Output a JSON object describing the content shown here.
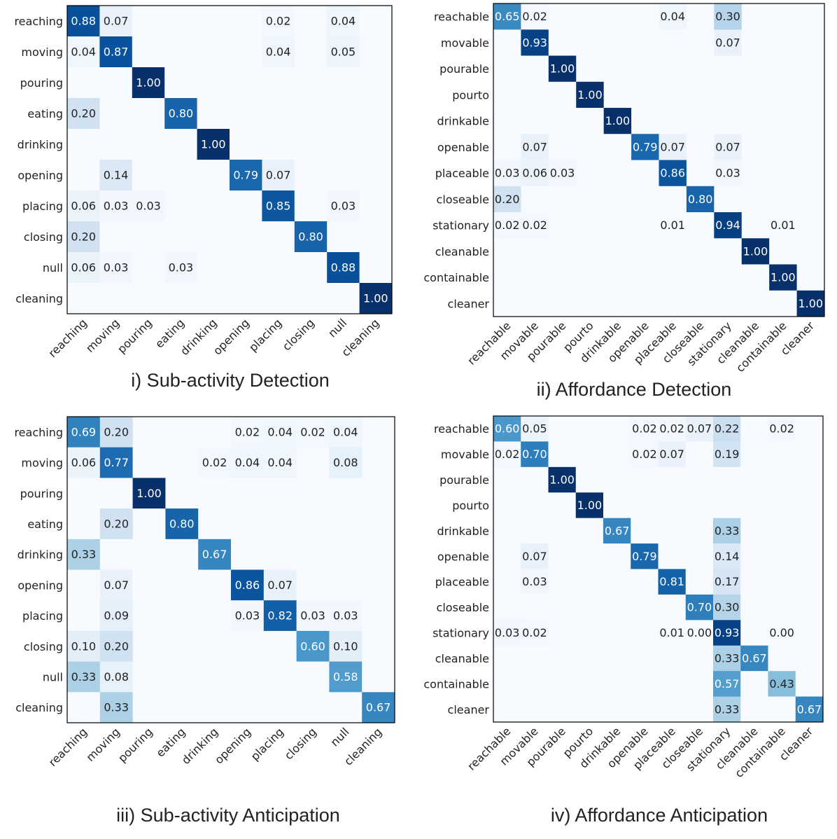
{
  "chart_data": [
    {
      "type": "heatmap",
      "title": "i) Sub-activity Detection",
      "row_labels": [
        "reaching",
        "moving",
        "pouring",
        "eating",
        "drinking",
        "opening",
        "placing",
        "closing",
        "null",
        "cleaning"
      ],
      "col_labels": [
        "reaching",
        "moving",
        "pouring",
        "eating",
        "drinking",
        "opening",
        "placing",
        "closing",
        "null",
        "cleaning"
      ],
      "matrix": [
        [
          0.88,
          0.07,
          0,
          0,
          0,
          0,
          0.02,
          0,
          0.04,
          0
        ],
        [
          0.04,
          0.87,
          0,
          0,
          0,
          0,
          0.04,
          0,
          0.05,
          0
        ],
        [
          0,
          0,
          1.0,
          0,
          0,
          0,
          0,
          0,
          0,
          0
        ],
        [
          0.2,
          0,
          0,
          0.8,
          0,
          0,
          0,
          0,
          0,
          0
        ],
        [
          0,
          0,
          0,
          0,
          1.0,
          0,
          0,
          0,
          0,
          0
        ],
        [
          0,
          0.14,
          0,
          0,
          0,
          0.79,
          0.07,
          0,
          0,
          0
        ],
        [
          0.06,
          0.03,
          0.03,
          0,
          0,
          0,
          0.85,
          0,
          0.03,
          0
        ],
        [
          0.2,
          0,
          0,
          0,
          0,
          0,
          0,
          0.8,
          0,
          0
        ],
        [
          0.06,
          0.03,
          0,
          0.03,
          0,
          0,
          0,
          0,
          0.88,
          0
        ],
        [
          0,
          0,
          0,
          0,
          0,
          0,
          0,
          0,
          0,
          1.0
        ]
      ],
      "value_range": [
        0,
        1
      ]
    },
    {
      "type": "heatmap",
      "title": "ii) Affordance Detection",
      "row_labels": [
        "reachable",
        "movable",
        "pourable",
        "pourto",
        "drinkable",
        "openable",
        "placeable",
        "closeable",
        "stationary",
        "cleanable",
        "containable",
        "cleaner"
      ],
      "col_labels": [
        "reachable",
        "movable",
        "pourable",
        "pourto",
        "drinkable",
        "openable",
        "placeable",
        "closeable",
        "stationary",
        "cleanable",
        "containable",
        "cleaner"
      ],
      "matrix": [
        [
          0.65,
          0.02,
          0,
          0,
          0,
          0,
          0.04,
          0,
          0.3,
          0,
          0,
          0
        ],
        [
          0,
          0.93,
          0,
          0,
          0,
          0,
          0,
          0,
          0.07,
          0,
          0,
          0
        ],
        [
          0,
          0,
          1.0,
          0,
          0,
          0,
          0,
          0,
          0,
          0,
          0,
          0
        ],
        [
          0,
          0,
          0,
          1.0,
          0,
          0,
          0,
          0,
          0,
          0,
          0,
          0
        ],
        [
          0,
          0,
          0,
          0,
          1.0,
          0,
          0,
          0,
          0,
          0,
          0,
          0
        ],
        [
          0,
          0.07,
          0,
          0,
          0,
          0.79,
          0.07,
          0,
          0.07,
          0,
          0,
          0
        ],
        [
          0.03,
          0.06,
          0.03,
          0,
          0,
          0,
          0.86,
          0,
          0.03,
          0,
          0,
          0
        ],
        [
          0.2,
          0,
          0,
          0,
          0,
          0,
          0,
          0.8,
          0,
          0,
          0,
          0
        ],
        [
          0.02,
          0.02,
          0,
          0,
          0,
          0,
          0.01,
          0,
          0.94,
          0,
          0.01,
          0
        ],
        [
          0,
          0,
          0,
          0,
          0,
          0,
          0,
          0,
          0,
          1.0,
          0,
          0
        ],
        [
          0,
          0,
          0,
          0,
          0,
          0,
          0,
          0,
          0,
          0,
          1.0,
          0
        ],
        [
          0,
          0,
          0,
          0,
          0,
          0,
          0,
          0,
          0,
          0,
          0,
          1.0
        ]
      ],
      "value_range": [
        0,
        1
      ]
    },
    {
      "type": "heatmap",
      "title": "iii) Sub-activity Anticipation",
      "row_labels": [
        "reaching",
        "moving",
        "pouring",
        "eating",
        "drinking",
        "opening",
        "placing",
        "closing",
        "null",
        "cleaning"
      ],
      "col_labels": [
        "reaching",
        "moving",
        "pouring",
        "eating",
        "drinking",
        "opening",
        "placing",
        "closing",
        "null",
        "cleaning"
      ],
      "matrix": [
        [
          0.69,
          0.2,
          0,
          0,
          0,
          0.02,
          0.04,
          0.02,
          0.04,
          0
        ],
        [
          0.06,
          0.77,
          0,
          0,
          0.02,
          0.04,
          0.04,
          0,
          0.08,
          0
        ],
        [
          0,
          0,
          1.0,
          0,
          0,
          0,
          0,
          0,
          0,
          0
        ],
        [
          0,
          0.2,
          0,
          0.8,
          0,
          0,
          0,
          0,
          0,
          0
        ],
        [
          0.33,
          0,
          0,
          0,
          0.67,
          0,
          0,
          0,
          0,
          0
        ],
        [
          0,
          0.07,
          0,
          0,
          0,
          0.86,
          0.07,
          0,
          0,
          0
        ],
        [
          0,
          0.09,
          0,
          0,
          0,
          0.03,
          0.82,
          0.03,
          0.03,
          0
        ],
        [
          0.1,
          0.2,
          0,
          0,
          0,
          0,
          0,
          0.6,
          0.1,
          0
        ],
        [
          0.33,
          0.08,
          0,
          0,
          0,
          0,
          0,
          0,
          0.58,
          0
        ],
        [
          0,
          0.33,
          0,
          0,
          0,
          0,
          0,
          0,
          0,
          0.67
        ]
      ],
      "value_range": [
        0,
        1
      ]
    },
    {
      "type": "heatmap",
      "title": "iv) Affordance Anticipation",
      "row_labels": [
        "reachable",
        "movable",
        "pourable",
        "pourto",
        "drinkable",
        "openable",
        "placeable",
        "closeable",
        "stationary",
        "cleanable",
        "containable",
        "cleaner"
      ],
      "col_labels": [
        "reachable",
        "movable",
        "pourable",
        "pourto",
        "drinkable",
        "openable",
        "placeable",
        "closeable",
        "stationary",
        "cleanable",
        "containable",
        "cleaner"
      ],
      "matrix": [
        [
          0.6,
          0.05,
          0,
          0,
          0,
          0.02,
          0.02,
          0.07,
          0.22,
          0,
          0.02,
          0
        ],
        [
          0.02,
          0.7,
          0,
          0,
          0,
          0.02,
          0.07,
          0,
          0.19,
          0,
          0,
          0
        ],
        [
          0,
          0,
          1.0,
          0,
          0,
          0,
          0,
          0,
          0,
          0,
          0,
          0
        ],
        [
          0,
          0,
          0,
          1.0,
          0,
          0,
          0,
          0,
          0,
          0,
          0,
          0
        ],
        [
          0,
          0,
          0,
          0,
          0.67,
          0,
          0,
          0,
          0.33,
          0,
          0,
          0
        ],
        [
          0,
          0.07,
          0,
          0,
          0,
          0.79,
          0,
          0,
          0.14,
          0,
          0,
          0
        ],
        [
          0,
          0.03,
          0,
          0,
          0,
          0,
          0.81,
          0,
          0.17,
          0,
          0,
          0
        ],
        [
          0,
          0,
          0,
          0,
          0,
          0,
          0,
          0.7,
          0.3,
          0,
          0,
          0
        ],
        [
          0.03,
          0.02,
          0,
          0,
          0,
          0,
          0.01,
          0.0,
          0.93,
          0,
          0.0,
          0
        ],
        [
          0,
          0,
          0,
          0,
          0,
          0,
          0,
          0,
          0.33,
          0.67,
          0,
          0
        ],
        [
          0,
          0,
          0,
          0,
          0,
          0,
          0,
          0,
          0.57,
          0,
          0.43,
          0
        ],
        [
          0,
          0,
          0,
          0,
          0,
          0,
          0,
          0,
          0.33,
          0,
          0,
          0.67
        ]
      ],
      "value_range": [
        0,
        1
      ]
    }
  ]
}
